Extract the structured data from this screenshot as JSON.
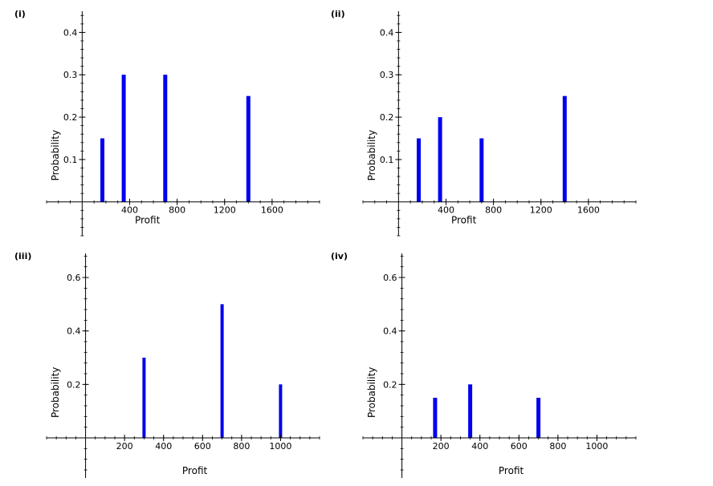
{
  "chart_data": [
    {
      "type": "bar",
      "panel_label": "(i)",
      "xlabel": "Profit",
      "ylabel": "Probability",
      "x": [
        170,
        350,
        700,
        1400
      ],
      "values": [
        0.15,
        0.3,
        0.3,
        0.25
      ],
      "xlim": [
        -300,
        2000
      ],
      "ylim": [
        -0.08,
        0.45
      ],
      "xticks": [
        400,
        800,
        1200,
        1600
      ],
      "xminor": 100,
      "yticks": [
        0.1,
        0.2,
        0.3,
        0.4
      ],
      "yminor": 0.02,
      "color": "#0000ee"
    },
    {
      "type": "bar",
      "panel_label": "(ii)",
      "xlabel": "Profit",
      "ylabel": "Probability",
      "x": [
        170,
        350,
        700,
        1400
      ],
      "values": [
        0.15,
        0.2,
        0.15,
        0.25
      ],
      "xlim": [
        -300,
        2000
      ],
      "ylim": [
        -0.08,
        0.45
      ],
      "xticks": [
        400,
        800,
        1200,
        1600
      ],
      "xminor": 100,
      "yticks": [
        0.1,
        0.2,
        0.3,
        0.4
      ],
      "yminor": 0.02,
      "color": "#0000ee"
    },
    {
      "type": "bar",
      "panel_label": "(iii)",
      "xlabel": "Profit",
      "ylabel": "Probability",
      "x": [
        300,
        700,
        1000
      ],
      "values": [
        0.3,
        0.5,
        0.2
      ],
      "xlim": [
        -200,
        1200
      ],
      "ylim": [
        -0.15,
        0.69
      ],
      "xticks": [
        200,
        400,
        600,
        800,
        1000
      ],
      "xminor": 50,
      "yticks": [
        0.2,
        0.4,
        0.6
      ],
      "yminor": 0.04,
      "color": "#0000ee"
    },
    {
      "type": "bar",
      "panel_label": "(iv)",
      "xlabel": "Profit",
      "ylabel": "Probability",
      "x": [
        170,
        350,
        700
      ],
      "values": [
        0.15,
        0.2,
        0.15
      ],
      "xlim": [
        -200,
        1200
      ],
      "ylim": [
        -0.15,
        0.69
      ],
      "xticks": [
        200,
        400,
        600,
        800,
        1000
      ],
      "xminor": 50,
      "yticks": [
        0.2,
        0.4,
        0.6
      ],
      "yminor": 0.04,
      "color": "#0000ee"
    }
  ]
}
